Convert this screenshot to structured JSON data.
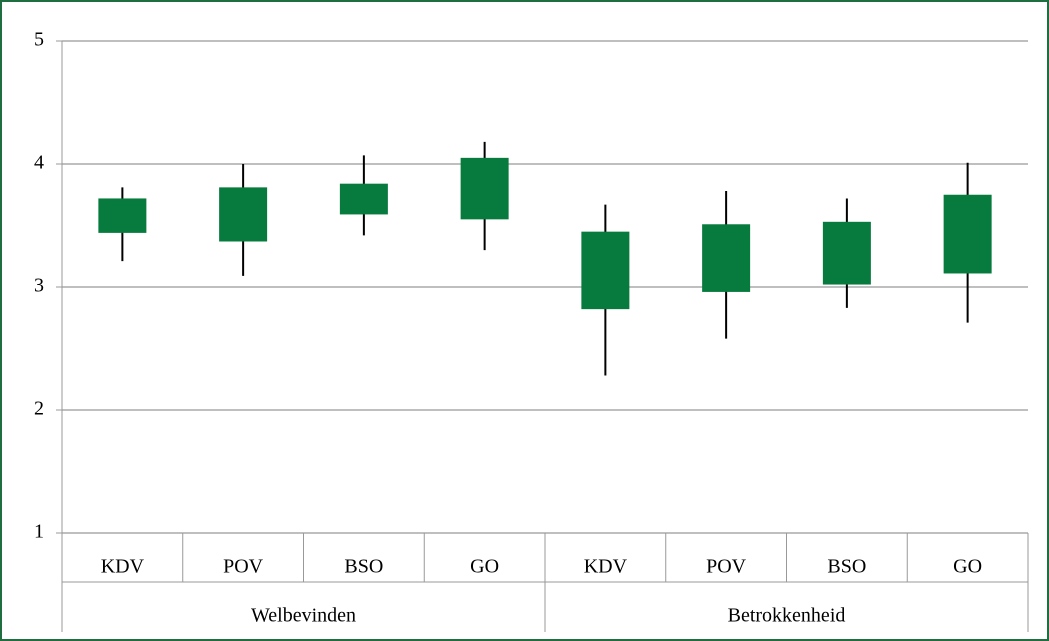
{
  "chart_data": {
    "type": "box",
    "groups": [
      {
        "label": "Welbevinden",
        "size": 4
      },
      {
        "label": "Betrokkenheid",
        "size": 4
      }
    ],
    "categories": [
      "KDV",
      "POV",
      "BSO",
      "GO",
      "KDV",
      "POV",
      "BSO",
      "GO"
    ],
    "high": [
      3.81,
      4.0,
      4.07,
      4.18,
      3.67,
      3.78,
      3.72,
      4.01
    ],
    "box_high": [
      3.72,
      3.81,
      3.84,
      4.05,
      3.45,
      3.51,
      3.53,
      3.75
    ],
    "box_low": [
      3.44,
      3.37,
      3.59,
      3.55,
      2.82,
      2.96,
      3.02,
      3.11
    ],
    "low": [
      3.21,
      3.09,
      3.42,
      3.3,
      2.28,
      2.58,
      2.83,
      2.71
    ],
    "color": "#077a3e",
    "ylim": [
      1,
      5
    ],
    "yticks": [
      1,
      2,
      3,
      4,
      5
    ],
    "grid": true
  }
}
